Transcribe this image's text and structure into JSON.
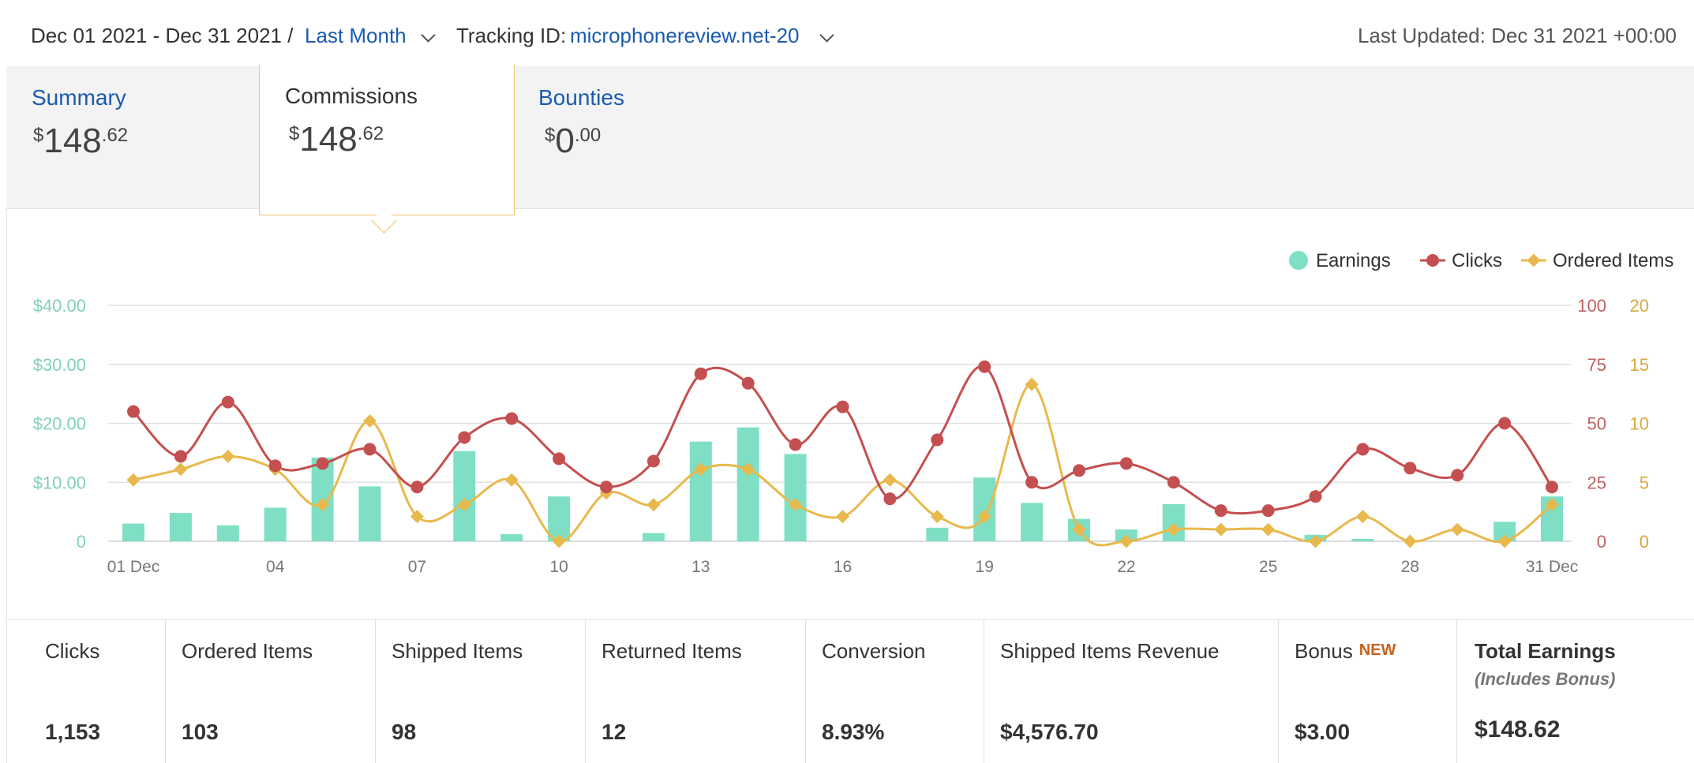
{
  "header": {
    "date_range": "Dec 01 2021 - Dec 31 2021 /",
    "period_label": "Last Month",
    "tracking_label": "Tracking ID:",
    "tracking_id": "microphonereview.net-20",
    "last_updated": "Last Updated: Dec 31 2021 +00:00"
  },
  "tabs": [
    {
      "label": "Summary",
      "currency": "$",
      "whole": "148",
      "cents": ".62"
    },
    {
      "label": "Commissions",
      "currency": "$",
      "whole": "148",
      "cents": ".62"
    },
    {
      "label": "Bounties",
      "currency": "$",
      "whole": "0",
      "cents": ".00"
    }
  ],
  "colors": {
    "earnings": "#7fdfc4",
    "clicks": "#c44f50",
    "ordered": "#e7b94c",
    "link": "#1a5bb0",
    "active_border": "#f0c46b"
  },
  "chart_data": {
    "type": "bar+line",
    "legend": [
      "Earnings",
      "Clicks",
      "Ordered Items"
    ],
    "legend_position": "top-right",
    "x": [
      "01 Dec",
      "02",
      "03",
      "04",
      "05",
      "06",
      "07",
      "08",
      "09",
      "10",
      "11",
      "12",
      "13",
      "14",
      "15",
      "16",
      "17",
      "18",
      "19",
      "20",
      "21",
      "22",
      "23",
      "24",
      "25",
      "26",
      "27",
      "28",
      "29",
      "30",
      "31 Dec"
    ],
    "x_tick_labels": [
      "01 Dec",
      "04",
      "07",
      "10",
      "13",
      "16",
      "19",
      "22",
      "25",
      "28",
      "31 Dec"
    ],
    "left_axis": {
      "ticks": [
        "0",
        "$10.00",
        "$20.00",
        "$30.00",
        "$40.00"
      ],
      "range": [
        0,
        40
      ]
    },
    "right_axis_clicks": {
      "ticks": [
        "0",
        "25",
        "50",
        "75",
        "100"
      ],
      "range": [
        0,
        100
      ]
    },
    "right_axis_ordered": {
      "ticks": [
        "0",
        "5",
        "10",
        "15",
        "20"
      ],
      "range": [
        0,
        20
      ]
    },
    "series": [
      {
        "name": "Earnings",
        "axis": "left",
        "values": [
          3.0,
          4.8,
          2.7,
          5.7,
          14.2,
          9.3,
          0,
          15.3,
          1.2,
          7.6,
          0,
          1.4,
          16.9,
          19.3,
          14.8,
          0,
          0,
          2.3,
          10.8,
          6.5,
          3.8,
          2.0,
          6.3,
          0,
          0,
          1.1,
          0.4,
          0,
          0,
          3.3,
          7.6
        ]
      },
      {
        "name": "Clicks",
        "axis": "right_clicks",
        "values": [
          55,
          36,
          59,
          32,
          33,
          39,
          23,
          44,
          52,
          35,
          23,
          34,
          71,
          67,
          41,
          57,
          18,
          43,
          74,
          25,
          30,
          33,
          25,
          13,
          13,
          19,
          39,
          31,
          28,
          50,
          23
        ]
      },
      {
        "name": "Ordered Items",
        "axis": "right_ordered",
        "values": [
          5.2,
          6.1,
          7.2,
          6.1,
          3.1,
          10.2,
          2.1,
          3.1,
          5.2,
          0,
          4.1,
          3.1,
          6.1,
          6.1,
          3.1,
          2.1,
          5.2,
          2.1,
          2.1,
          13.3,
          1.0,
          0,
          1.0,
          1.0,
          1.0,
          0,
          2.1,
          0,
          1.0,
          0,
          3.1
        ]
      }
    ]
  },
  "metrics": [
    {
      "label": "Clicks",
      "value": "1,153"
    },
    {
      "label": "Ordered Items",
      "value": "103"
    },
    {
      "label": "Shipped Items",
      "value": "98"
    },
    {
      "label": "Returned Items",
      "value": "12"
    },
    {
      "label": "Conversion",
      "value": "8.93%"
    },
    {
      "label": "Shipped Items Revenue",
      "value": "$4,576.70"
    },
    {
      "label": "Bonus",
      "badge": "NEW",
      "value": "$3.00"
    },
    {
      "label": "Total Earnings",
      "sub": "(Includes Bonus)",
      "value": "$148.62"
    }
  ]
}
